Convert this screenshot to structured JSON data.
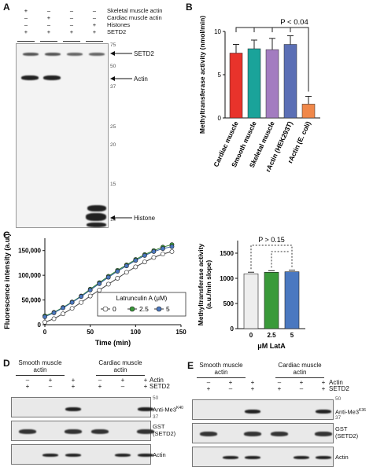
{
  "panelA": {
    "label": "A",
    "rows": [
      {
        "name": "Skeletal muscle actin",
        "signs": [
          "+",
          "–",
          "–",
          "–"
        ]
      },
      {
        "name": "Cardiac muscle actin",
        "signs": [
          "–",
          "+",
          "–",
          "–"
        ]
      },
      {
        "name": "Histones",
        "signs": [
          "–",
          "–",
          "–",
          "+"
        ]
      },
      {
        "name": "SETD2",
        "signs": [
          "+",
          "+",
          "+",
          "+"
        ]
      }
    ],
    "markers": [
      "75",
      "50",
      "37",
      "25",
      "20",
      "15",
      "10"
    ],
    "annotations": {
      "setd2": "SETD2",
      "actin": "Actin",
      "histone": "Histone"
    }
  },
  "panelB": {
    "label": "B",
    "chart_data": {
      "type": "bar",
      "ylabel": "Methyltransferase activity (nmol/min)",
      "ylim": [
        0,
        10
      ],
      "yticks": [
        "0",
        "5",
        "10"
      ],
      "categories": [
        "Cardiac muscle",
        "Smooth muscle",
        "Skeletal muscle",
        "rActin (HEK293T)",
        "rActin (E. coli)"
      ],
      "values": [
        7.5,
        8.0,
        7.9,
        8.5,
        1.6
      ],
      "errors": [
        1.0,
        1.0,
        1.3,
        1.0,
        0.9
      ],
      "colors": [
        "#e8332b",
        "#1aa39a",
        "#a37cc0",
        "#5b6fb5",
        "#f0884a"
      ],
      "annotation": "P < 0.04"
    }
  },
  "panelC": {
    "label": "C",
    "line": {
      "chart_data": {
        "type": "line",
        "xlabel": "Time (min)",
        "ylabel": "Fluorescence intensity (a.u.)",
        "xlim": [
          0,
          150
        ],
        "ylim": [
          0,
          175000
        ],
        "xticks": [
          "0",
          "50",
          "100",
          "150"
        ],
        "yticks": [
          "0",
          "50,000",
          "100,000",
          "150,000"
        ],
        "legend_title": "Latrunculin A (μM)",
        "series": [
          {
            "name": "0",
            "color": "#ffffff",
            "x": [
              0,
              10,
              20,
              30,
              40,
              50,
              60,
              70,
              80,
              90,
              100,
              110,
              120,
              130,
              140
            ],
            "y": [
              5000,
              12000,
              22000,
              33000,
              45000,
              58000,
              70000,
              82000,
              94000,
              106000,
              117000,
              127000,
              136000,
              143000,
              148000
            ]
          },
          {
            "name": "2.5",
            "color": "#3a9a3a",
            "x": [
              0,
              10,
              20,
              30,
              40,
              50,
              60,
              70,
              80,
              90,
              100,
              110,
              120,
              130,
              140
            ],
            "y": [
              18000,
              25000,
              35000,
              46000,
              58000,
              72000,
              85000,
              98000,
              110000,
              121000,
              132000,
              142000,
              150000,
              157000,
              162000
            ]
          },
          {
            "name": "5",
            "color": "#4a78c0",
            "x": [
              0,
              10,
              20,
              30,
              40,
              50,
              60,
              70,
              80,
              90,
              100,
              110,
              120,
              130,
              140
            ],
            "y": [
              16000,
              24000,
              34000,
              45000,
              57000,
              70000,
              83000,
              96000,
              108000,
              119000,
              130000,
              140000,
              148000,
              154000,
              158000
            ]
          }
        ]
      }
    },
    "bar": {
      "chart_data": {
        "type": "bar",
        "xlabel": "μM LatA",
        "ylabel": "Methyltransferase activity (a.u./min slope)",
        "ylim": [
          0,
          1750
        ],
        "yticks": [
          "0",
          "500",
          "1000",
          "1500"
        ],
        "categories": [
          "0",
          "2.5",
          "5"
        ],
        "values": [
          1090,
          1120,
          1130
        ],
        "colors": [
          "#eeeeee",
          "#3a9a3a",
          "#4a78c0"
        ],
        "annotation": "P > 0.15"
      }
    }
  },
  "panelD": {
    "label": "D",
    "group1": "Smooth muscle actin",
    "group2": "Cardiac muscle actin",
    "row_actin": "Actin",
    "row_setd2": "SETD2",
    "actin_signs": [
      "–",
      "+",
      "+",
      "–",
      "+",
      "+"
    ],
    "setd2_signs": [
      "+",
      "–",
      "+",
      "+",
      "–",
      "+"
    ],
    "blots": [
      "Anti-Me3",
      "GST (SETD2)",
      "Actin"
    ],
    "me3_superscript": "K40",
    "markers": [
      "50",
      "37"
    ]
  },
  "panelE": {
    "label": "E",
    "group1": "Smooth muscle actin",
    "group2": "Cardiac muscle actin",
    "row_actin": "Actin",
    "row_setd2": "SETD2",
    "actin_signs": [
      "–",
      "+",
      "+",
      "–",
      "+",
      "+"
    ],
    "setd2_signs": [
      "+",
      "–",
      "+",
      "+",
      "–",
      "+"
    ],
    "blots": [
      "Anti-Me3",
      "GST (SETD2)",
      "Actin"
    ],
    "me3_superscript": "K36",
    "markers": [
      "50",
      "37"
    ]
  }
}
